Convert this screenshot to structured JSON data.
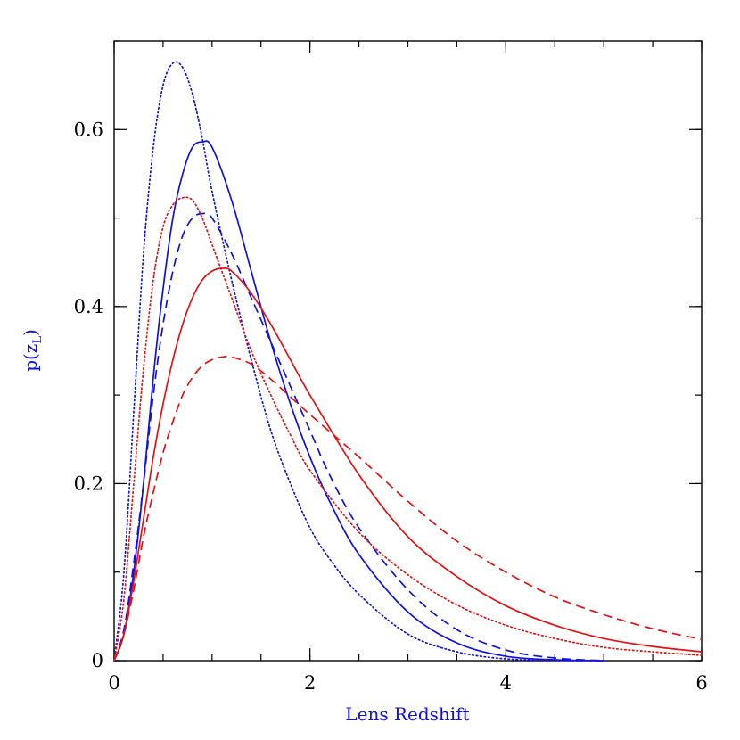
{
  "chart_data": {
    "type": "line",
    "xlabel": "Lens Redshift",
    "ylabel": "p(z",
    "ylabel_subscript": "L",
    "ylabel_close": ")",
    "xlim": [
      0,
      6
    ],
    "ylim": [
      0,
      0.7
    ],
    "x_ticks": [
      {
        "value": 0,
        "label": "0"
      },
      {
        "value": 2,
        "label": "2"
      },
      {
        "value": 4,
        "label": "4"
      },
      {
        "value": 6,
        "label": "6"
      }
    ],
    "y_ticks": [
      {
        "value": 0,
        "label": "0"
      },
      {
        "value": 0.2,
        "label": "0.2"
      },
      {
        "value": 0.4,
        "label": "0.4"
      },
      {
        "value": 0.6,
        "label": "0.6"
      }
    ],
    "x_minor_step": 0.5,
    "y_minor_step": 0.1,
    "grid": false,
    "series": [
      {
        "name": "blue-dotted",
        "color": "#1010e8",
        "style": "dotted",
        "x": [
          0,
          0.1,
          0.2,
          0.3,
          0.4,
          0.5,
          0.6,
          0.7,
          0.8,
          0.9,
          1.0,
          1.2,
          1.4,
          1.6,
          1.8,
          2.0,
          2.2,
          2.5,
          3.0,
          3.5,
          4.0,
          4.5,
          4.8
        ],
        "y": [
          0,
          0.1,
          0.28,
          0.46,
          0.58,
          0.65,
          0.675,
          0.67,
          0.64,
          0.59,
          0.53,
          0.43,
          0.34,
          0.26,
          0.2,
          0.15,
          0.115,
          0.075,
          0.03,
          0.01,
          0.002,
          0.0005,
          0
        ]
      },
      {
        "name": "blue-solid",
        "color": "#1010e8",
        "style": "solid",
        "x": [
          0,
          0.1,
          0.2,
          0.3,
          0.4,
          0.5,
          0.6,
          0.7,
          0.8,
          0.9,
          1.0,
          1.2,
          1.4,
          1.6,
          1.8,
          2.0,
          2.2,
          2.5,
          3.0,
          3.5,
          4.0,
          4.5,
          5.0
        ],
        "y": [
          0,
          0.03,
          0.1,
          0.2,
          0.32,
          0.42,
          0.5,
          0.55,
          0.58,
          0.586,
          0.58,
          0.52,
          0.44,
          0.36,
          0.29,
          0.23,
          0.18,
          0.12,
          0.055,
          0.02,
          0.005,
          0.001,
          0
        ]
      },
      {
        "name": "blue-dashed",
        "color": "#1010e8",
        "style": "dashed",
        "x": [
          0,
          0.1,
          0.2,
          0.3,
          0.4,
          0.5,
          0.6,
          0.7,
          0.8,
          0.9,
          1.0,
          1.2,
          1.4,
          1.6,
          1.8,
          2.0,
          2.2,
          2.5,
          3.0,
          3.5,
          4.0,
          4.5,
          5.0
        ],
        "y": [
          0,
          0.035,
          0.11,
          0.2,
          0.3,
          0.38,
          0.44,
          0.48,
          0.5,
          0.505,
          0.5,
          0.46,
          0.41,
          0.36,
          0.31,
          0.26,
          0.21,
          0.15,
          0.08,
          0.035,
          0.012,
          0.003,
          0
        ]
      },
      {
        "name": "red-dotted",
        "color": "#e81010",
        "style": "dotted",
        "x": [
          0,
          0.1,
          0.2,
          0.3,
          0.4,
          0.5,
          0.6,
          0.7,
          0.8,
          0.9,
          1.0,
          1.2,
          1.4,
          1.6,
          1.8,
          2.0,
          2.5,
          3.0,
          3.5,
          4.0,
          4.5,
          5.0,
          5.5,
          6.0
        ],
        "y": [
          0,
          0.07,
          0.2,
          0.33,
          0.43,
          0.49,
          0.515,
          0.523,
          0.52,
          0.5,
          0.47,
          0.41,
          0.35,
          0.3,
          0.255,
          0.215,
          0.145,
          0.097,
          0.063,
          0.04,
          0.025,
          0.015,
          0.01,
          0.006
        ]
      },
      {
        "name": "red-solid",
        "color": "#e81010",
        "style": "solid",
        "x": [
          0,
          0.1,
          0.2,
          0.3,
          0.4,
          0.5,
          0.6,
          0.7,
          0.8,
          0.9,
          1.0,
          1.1,
          1.2,
          1.4,
          1.6,
          1.8,
          2.0,
          2.5,
          3.0,
          3.5,
          4.0,
          4.5,
          5.0,
          5.5,
          6.0
        ],
        "y": [
          0,
          0.03,
          0.09,
          0.16,
          0.23,
          0.29,
          0.34,
          0.38,
          0.41,
          0.43,
          0.44,
          0.443,
          0.44,
          0.415,
          0.38,
          0.34,
          0.3,
          0.21,
          0.14,
          0.095,
          0.062,
          0.04,
          0.025,
          0.016,
          0.01
        ]
      },
      {
        "name": "red-dashed",
        "color": "#e81010",
        "style": "dashed",
        "x": [
          0,
          0.1,
          0.2,
          0.3,
          0.4,
          0.5,
          0.6,
          0.7,
          0.8,
          0.9,
          1.0,
          1.1,
          1.2,
          1.4,
          1.6,
          1.8,
          2.0,
          2.5,
          3.0,
          3.5,
          4.0,
          4.5,
          5.0,
          5.5,
          6.0
        ],
        "y": [
          0,
          0.03,
          0.08,
          0.14,
          0.19,
          0.235,
          0.27,
          0.3,
          0.32,
          0.333,
          0.34,
          0.343,
          0.343,
          0.335,
          0.318,
          0.298,
          0.278,
          0.23,
          0.18,
          0.135,
          0.1,
          0.072,
          0.052,
          0.036,
          0.024
        ]
      }
    ]
  }
}
